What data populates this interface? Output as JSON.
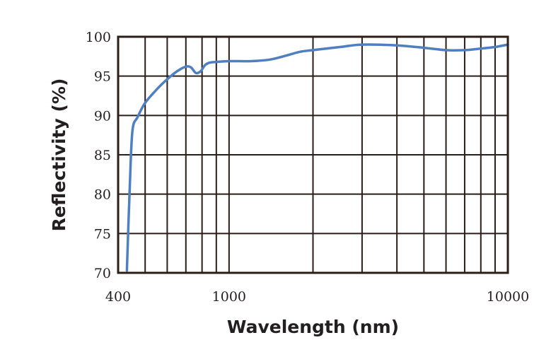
{
  "chart_data": {
    "type": "line",
    "title": "",
    "xlabel": "Wavelength (nm)",
    "ylabel": "Reflectivity (%)",
    "x_scale": "log",
    "xlim": [
      400,
      10000
    ],
    "ylim": [
      70,
      100
    ],
    "grid": true,
    "x_ticks": [
      {
        "value": 400,
        "label": "400"
      },
      {
        "value": 1000,
        "label": "1000"
      },
      {
        "value": 10000,
        "label": "10000"
      }
    ],
    "x_gridlines": [
      400,
      500,
      600,
      700,
      800,
      900,
      1000,
      2000,
      3000,
      4000,
      5000,
      6000,
      7000,
      8000,
      9000,
      10000
    ],
    "y_ticks": [
      {
        "value": 70,
        "label": "70"
      },
      {
        "value": 75,
        "label": "75"
      },
      {
        "value": 80,
        "label": "80"
      },
      {
        "value": 85,
        "label": "85"
      },
      {
        "value": 90,
        "label": "90"
      },
      {
        "value": 95,
        "label": "95"
      },
      {
        "value": 100,
        "label": "100"
      }
    ],
    "colors": {
      "line": "#4f7fc1",
      "grid": "#2b1d17",
      "text": "#231f20"
    },
    "series": [
      {
        "name": "Reflectivity",
        "x": [
          430,
          440,
          450,
          470,
          500,
          550,
          600,
          650,
          700,
          730,
          760,
          790,
          820,
          850,
          900,
          1000,
          1200,
          1400,
          1600,
          1800,
          2000,
          2500,
          3000,
          4000,
          5000,
          6000,
          7000,
          8000,
          9000,
          10000
        ],
        "values": [
          70.3,
          80.5,
          88.0,
          89.8,
          91.6,
          93.3,
          94.6,
          95.6,
          96.2,
          96.1,
          95.4,
          95.6,
          96.4,
          96.7,
          96.8,
          96.9,
          96.9,
          97.1,
          97.6,
          98.1,
          98.3,
          98.7,
          99.0,
          98.9,
          98.6,
          98.3,
          98.3,
          98.5,
          98.7,
          99.0
        ]
      }
    ]
  }
}
